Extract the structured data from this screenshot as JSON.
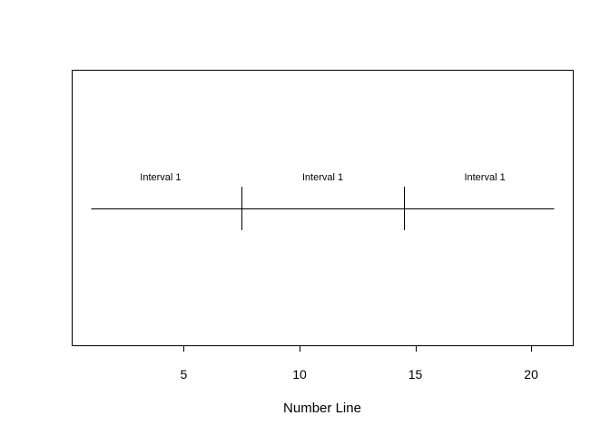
{
  "chart_data": {
    "type": "number-line",
    "xlabel": "Number Line",
    "xlim": [
      0.2,
      21.8
    ],
    "x_ticks": [
      5,
      10,
      15,
      20
    ],
    "line": {
      "from": 1,
      "to": 21
    },
    "breakpoints": [
      7.5,
      14.5
    ],
    "intervals": [
      {
        "label": "Interval 1",
        "center": 4
      },
      {
        "label": "Interval 1",
        "center": 11
      },
      {
        "label": "Interval 1",
        "center": 18
      }
    ],
    "grid": false,
    "legend": "none"
  },
  "colors": {
    "line": "#000000",
    "background": "#ffffff"
  }
}
